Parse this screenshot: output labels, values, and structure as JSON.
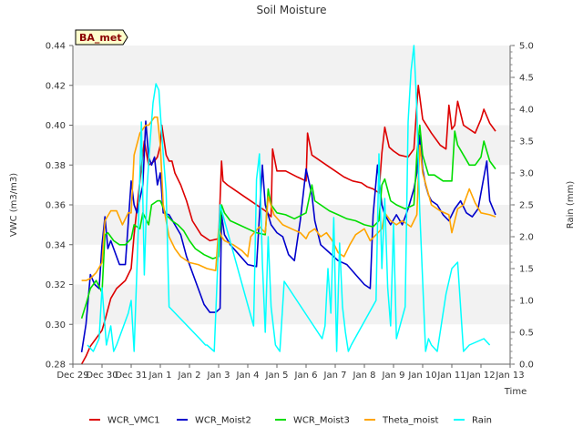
{
  "chart_data": {
    "type": "line",
    "title": "Soil Moisture",
    "xlabel": "Time",
    "ylabel": "VWC (m3/m3)",
    "ylabel_right": "Rain (mm)",
    "badge": "BA_met",
    "x_ticks": [
      "Dec 29",
      "Dec 30",
      "Dec 31",
      "Jan 1",
      "Jan 2",
      "Jan 3",
      "Jan 4",
      "Jan 5",
      "Jan 6",
      "Jan 7",
      "Jan 8",
      "Jan 9",
      "Jan 10",
      "Jan 11",
      "Jan 12",
      "Jan 13"
    ],
    "xlim": [
      0,
      15
    ],
    "ylim": [
      0.28,
      0.44
    ],
    "y_ticks": [
      "0.28",
      "0.30",
      "0.32",
      "0.34",
      "0.36",
      "0.38",
      "0.40",
      "0.42",
      "0.44"
    ],
    "ylim_right": [
      0,
      5
    ],
    "y_ticks_right": [
      "0.0",
      "0.5",
      "1.0",
      "1.5",
      "2.0",
      "2.5",
      "3.0",
      "3.5",
      "4.0",
      "4.5",
      "5.0"
    ],
    "grid": "horizontal bands",
    "legend_position": "bottom",
    "series": [
      {
        "name": "WCR_VMC1",
        "axis": "left",
        "color": "#dd0000",
        "x": [
          0.3,
          0.45,
          0.6,
          0.8,
          1.0,
          1.1,
          1.3,
          1.5,
          1.8,
          2.0,
          2.1,
          2.3,
          2.45,
          2.6,
          2.8,
          2.9,
          3.0,
          3.05,
          3.2,
          3.3,
          3.4,
          3.5,
          3.7,
          3.9,
          4.1,
          4.4,
          4.7,
          5.0,
          5.1,
          5.15,
          5.3,
          5.6,
          5.9,
          6.2,
          6.6,
          6.8,
          6.85,
          7.0,
          7.3,
          7.7,
          8.0,
          8.05,
          8.2,
          8.4,
          8.7,
          9.0,
          9.3,
          9.6,
          9.9,
          10.1,
          10.3,
          10.5,
          10.6,
          10.7,
          10.85,
          11.0,
          11.2,
          11.5,
          11.7,
          11.8,
          11.85,
          12.0,
          12.3,
          12.6,
          12.8,
          12.9,
          13.0,
          13.1,
          13.2,
          13.4,
          13.6,
          13.8,
          14.0,
          14.1,
          14.3,
          14.5
        ],
        "values": [
          0.28,
          0.284,
          0.289,
          0.293,
          0.297,
          0.302,
          0.313,
          0.318,
          0.322,
          0.328,
          0.345,
          0.372,
          0.392,
          0.38,
          0.382,
          0.384,
          0.39,
          0.4,
          0.385,
          0.382,
          0.382,
          0.376,
          0.37,
          0.362,
          0.352,
          0.345,
          0.342,
          0.343,
          0.382,
          0.372,
          0.37,
          0.367,
          0.364,
          0.361,
          0.357,
          0.354,
          0.388,
          0.377,
          0.377,
          0.374,
          0.372,
          0.396,
          0.385,
          0.383,
          0.38,
          0.377,
          0.374,
          0.372,
          0.371,
          0.369,
          0.368,
          0.366,
          0.386,
          0.399,
          0.389,
          0.387,
          0.385,
          0.384,
          0.388,
          0.41,
          0.42,
          0.403,
          0.396,
          0.39,
          0.388,
          0.41,
          0.398,
          0.4,
          0.412,
          0.4,
          0.398,
          0.396,
          0.403,
          0.408,
          0.401,
          0.397
        ]
      },
      {
        "name": "WCR_Moist2",
        "axis": "left",
        "color": "#0000cc",
        "x": [
          0.3,
          0.45,
          0.6,
          0.75,
          0.9,
          1.0,
          1.1,
          1.2,
          1.3,
          1.45,
          1.6,
          1.8,
          2.0,
          2.1,
          2.2,
          2.4,
          2.5,
          2.6,
          2.7,
          2.8,
          2.9,
          3.0,
          3.1,
          3.3,
          3.5,
          3.7,
          3.9,
          4.1,
          4.3,
          4.5,
          4.7,
          4.9,
          5.05,
          5.1,
          5.2,
          5.4,
          5.7,
          6.0,
          6.3,
          6.5,
          6.6,
          6.8,
          7.0,
          7.2,
          7.4,
          7.6,
          7.8,
          8.0,
          8.2,
          8.3,
          8.5,
          8.8,
          9.1,
          9.4,
          9.7,
          10.0,
          10.2,
          10.3,
          10.45,
          10.6,
          10.7,
          10.9,
          11.1,
          11.3,
          11.5,
          11.7,
          11.8,
          11.9,
          12.0,
          12.1,
          12.2,
          12.3,
          12.5,
          12.7,
          12.9,
          13.1,
          13.3,
          13.5,
          13.7,
          13.9,
          14.05,
          14.2,
          14.3,
          14.5
        ],
        "values": [
          0.286,
          0.3,
          0.325,
          0.32,
          0.318,
          0.34,
          0.354,
          0.338,
          0.342,
          0.336,
          0.33,
          0.33,
          0.372,
          0.36,
          0.356,
          0.37,
          0.402,
          0.384,
          0.38,
          0.384,
          0.37,
          0.376,
          0.356,
          0.355,
          0.35,
          0.345,
          0.334,
          0.326,
          0.318,
          0.31,
          0.306,
          0.306,
          0.308,
          0.355,
          0.345,
          0.34,
          0.335,
          0.33,
          0.329,
          0.38,
          0.36,
          0.35,
          0.346,
          0.344,
          0.335,
          0.332,
          0.352,
          0.378,
          0.365,
          0.352,
          0.34,
          0.336,
          0.332,
          0.33,
          0.325,
          0.32,
          0.318,
          0.355,
          0.38,
          0.36,
          0.355,
          0.35,
          0.355,
          0.35,
          0.358,
          0.368,
          0.376,
          0.395,
          0.378,
          0.37,
          0.365,
          0.362,
          0.36,
          0.355,
          0.352,
          0.358,
          0.362,
          0.356,
          0.354,
          0.358,
          0.37,
          0.382,
          0.362,
          0.355
        ]
      },
      {
        "name": "WCR_Moist3",
        "axis": "left",
        "color": "#00dd00",
        "x": [
          0.3,
          0.45,
          0.6,
          0.8,
          1.0,
          1.1,
          1.2,
          1.4,
          1.6,
          1.8,
          2.0,
          2.1,
          2.3,
          2.4,
          2.6,
          2.7,
          2.9,
          3.0,
          3.2,
          3.4,
          3.6,
          3.8,
          4.0,
          4.2,
          4.5,
          4.8,
          5.0,
          5.1,
          5.2,
          5.4,
          5.7,
          6.0,
          6.3,
          6.6,
          6.7,
          6.8,
          7.0,
          7.3,
          7.6,
          8.0,
          8.2,
          8.3,
          8.5,
          8.8,
          9.1,
          9.4,
          9.7,
          10.0,
          10.3,
          10.5,
          10.6,
          10.7,
          10.9,
          11.1,
          11.4,
          11.7,
          11.8,
          11.9,
          12.0,
          12.2,
          12.4,
          12.7,
          13.0,
          13.1,
          13.2,
          13.4,
          13.6,
          13.8,
          14.0,
          14.1,
          14.3,
          14.5
        ],
        "values": [
          0.303,
          0.31,
          0.318,
          0.322,
          0.316,
          0.345,
          0.346,
          0.342,
          0.34,
          0.34,
          0.343,
          0.35,
          0.348,
          0.356,
          0.35,
          0.36,
          0.362,
          0.362,
          0.355,
          0.352,
          0.35,
          0.347,
          0.342,
          0.338,
          0.335,
          0.333,
          0.334,
          0.36,
          0.356,
          0.352,
          0.35,
          0.348,
          0.346,
          0.345,
          0.368,
          0.36,
          0.356,
          0.355,
          0.353,
          0.356,
          0.37,
          0.362,
          0.36,
          0.357,
          0.355,
          0.353,
          0.352,
          0.35,
          0.349,
          0.352,
          0.37,
          0.373,
          0.362,
          0.36,
          0.358,
          0.36,
          0.385,
          0.4,
          0.385,
          0.375,
          0.375,
          0.372,
          0.372,
          0.397,
          0.39,
          0.385,
          0.38,
          0.38,
          0.384,
          0.392,
          0.382,
          0.378
        ]
      },
      {
        "name": "Theta_moist",
        "axis": "left",
        "color": "#ffa500",
        "x": [
          0.3,
          0.45,
          0.6,
          0.8,
          1.0,
          1.1,
          1.3,
          1.5,
          1.7,
          1.9,
          2.0,
          2.1,
          2.3,
          2.5,
          2.6,
          2.8,
          2.9,
          3.0,
          3.1,
          3.3,
          3.5,
          3.7,
          4.0,
          4.3,
          4.6,
          4.9,
          5.0,
          5.1,
          5.2,
          5.5,
          5.8,
          6.0,
          6.1,
          6.4,
          6.6,
          6.7,
          6.9,
          7.2,
          7.5,
          7.8,
          8.0,
          8.1,
          8.3,
          8.5,
          8.7,
          8.9,
          9.1,
          9.3,
          9.5,
          9.7,
          10.0,
          10.2,
          10.4,
          10.6,
          10.7,
          10.9,
          11.1,
          11.3,
          11.6,
          11.8,
          11.9,
          12.0,
          12.3,
          12.6,
          12.9,
          13.0,
          13.2,
          13.4,
          13.6,
          13.8,
          14.0,
          14.3,
          14.5
        ],
        "values": [
          0.322,
          0.322,
          0.323,
          0.326,
          0.331,
          0.352,
          0.357,
          0.357,
          0.35,
          0.356,
          0.356,
          0.385,
          0.396,
          0.4,
          0.4,
          0.404,
          0.404,
          0.39,
          0.36,
          0.344,
          0.338,
          0.334,
          0.331,
          0.33,
          0.328,
          0.327,
          0.348,
          0.344,
          0.342,
          0.34,
          0.337,
          0.334,
          0.344,
          0.349,
          0.346,
          0.364,
          0.355,
          0.35,
          0.348,
          0.346,
          0.343,
          0.346,
          0.348,
          0.344,
          0.346,
          0.342,
          0.336,
          0.334,
          0.34,
          0.345,
          0.348,
          0.342,
          0.345,
          0.348,
          0.356,
          0.352,
          0.35,
          0.352,
          0.349,
          0.355,
          0.39,
          0.376,
          0.36,
          0.357,
          0.355,
          0.346,
          0.358,
          0.36,
          0.368,
          0.361,
          0.356,
          0.355,
          0.354
        ]
      },
      {
        "name": "Rain",
        "axis": "right",
        "color": "#00ffff",
        "x": [
          0.5,
          0.7,
          0.9,
          1.0,
          1.15,
          1.3,
          1.4,
          1.5,
          1.9,
          2.0,
          2.1,
          2.25,
          2.35,
          2.45,
          2.55,
          2.65,
          2.75,
          2.85,
          2.95,
          3.05,
          3.2,
          3.3,
          4.35,
          4.55,
          4.6,
          4.85,
          5.05,
          6.2,
          6.3,
          6.4,
          6.5,
          6.6,
          6.7,
          6.8,
          6.95,
          7.1,
          7.25,
          8.55,
          8.65,
          8.75,
          8.85,
          8.95,
          9.05,
          9.15,
          9.25,
          9.35,
          9.45,
          9.55,
          10.4,
          10.5,
          10.6,
          10.7,
          10.8,
          10.9,
          11.0,
          11.1,
          11.4,
          11.5,
          11.6,
          11.7,
          11.8,
          11.9,
          12.0,
          12.1,
          12.2,
          12.3,
          12.5,
          12.8,
          13.0,
          13.2,
          13.4,
          13.6,
          14.1,
          14.3
        ],
        "values": [
          0.3,
          0.2,
          0.4,
          1.2,
          0.3,
          0.6,
          0.2,
          0.3,
          0.8,
          1.0,
          0.2,
          2.2,
          3.8,
          1.4,
          2.8,
          3.5,
          4.1,
          4.4,
          4.3,
          3.6,
          2.7,
          0.9,
          0.4,
          0.3,
          0.3,
          0.2,
          2.5,
          0.6,
          2.9,
          3.3,
          1.6,
          0.5,
          2.0,
          0.9,
          0.3,
          0.2,
          1.3,
          0.4,
          0.6,
          1.5,
          0.8,
          2.3,
          0.2,
          1.9,
          0.9,
          0.5,
          0.2,
          0.3,
          1.0,
          3.3,
          1.5,
          2.6,
          1.2,
          0.6,
          2.2,
          0.4,
          0.9,
          3.8,
          4.6,
          5.0,
          4.0,
          2.4,
          1.3,
          0.2,
          0.4,
          0.3,
          0.2,
          1.1,
          1.5,
          1.6,
          0.2,
          0.3,
          0.4,
          0.3
        ]
      }
    ]
  }
}
